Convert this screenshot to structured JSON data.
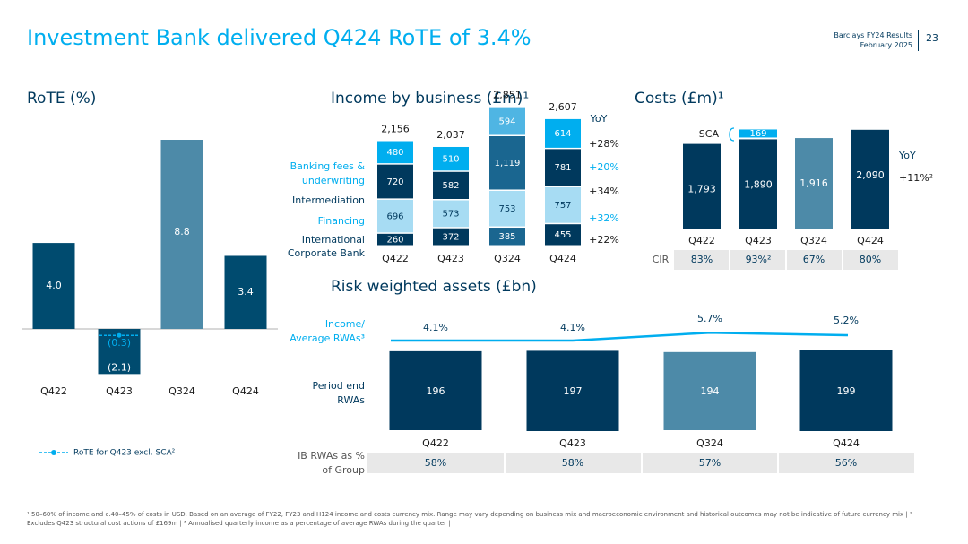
{
  "header": {
    "title": "Investment Bank delivered Q424 RoTE of 3.4%",
    "doc_line1": "Barclays FY24 Results",
    "doc_line2": "February 2025",
    "page_number": "23"
  },
  "colors": {
    "accent": "#00aeef",
    "navy": "#00395d",
    "dark": "#004b6f",
    "medium": "#1a6690",
    "steel": "#4d8aa8",
    "pale": "#a7dcf3",
    "light": "#4fb5e3",
    "grey_cell": "#e8e8e8"
  },
  "footnotes": "¹ 50–60% of income and c.40–45% of costs in USD. Based on an average of FY22, FY23 and H124 income and costs currency mix. Range may vary depending on business mix and macroeconomic environment and historical outcomes may not be indicative of future currency mix | ² Excludes Q423 structural cost actions of £169m | ³ Annualised quarterly income as a percentage of average RWAs during the quarter |",
  "chart_data": [
    {
      "id": "rote",
      "type": "bar",
      "title": "RoTE (%)",
      "categories": [
        "Q422",
        "Q423",
        "Q324",
        "Q424"
      ],
      "values": [
        4.0,
        -2.1,
        8.8,
        3.4
      ],
      "value_labels": [
        "4.0",
        "(2.1)",
        "8.8",
        "3.4"
      ],
      "ylim": [
        -2.1,
        8.8
      ],
      "excl_sca": {
        "category": "Q423",
        "value": -0.3,
        "label": "(0.3)"
      },
      "legend": "RoTE for Q423 excl. SCA²"
    },
    {
      "id": "income",
      "type": "bar",
      "stacked": true,
      "title": "Income by business (£m)¹",
      "categories": [
        "Q422",
        "Q423",
        "Q324",
        "Q424"
      ],
      "totals": [
        "2,156",
        "2,037",
        "2,851",
        "2,607"
      ],
      "yoy_header": "YoY",
      "series": [
        {
          "name": "International Corporate Bank",
          "legend_lines": [
            "International",
            "Corporate Bank"
          ],
          "values": [
            260,
            372,
            385,
            455
          ],
          "labels": [
            "260",
            "372",
            "385",
            "455"
          ],
          "yoy": "+22%"
        },
        {
          "name": "Financing",
          "legend_lines": [
            "Financing"
          ],
          "values": [
            696,
            573,
            753,
            757
          ],
          "labels": [
            "696",
            "573",
            "753",
            "757"
          ],
          "yoy": "+32%"
        },
        {
          "name": "Intermediation",
          "legend_lines": [
            "Intermediation"
          ],
          "values": [
            720,
            582,
            1119,
            781
          ],
          "labels": [
            "720",
            "582",
            "1,119",
            "781"
          ],
          "yoy": "+34%"
        },
        {
          "name": "Banking fees & underwriting",
          "legend_lines": [
            "Banking fees &",
            "underwriting"
          ],
          "values": [
            480,
            510,
            594,
            614
          ],
          "labels": [
            "480",
            "510",
            "594",
            "614"
          ],
          "yoy": "+20%"
        }
      ],
      "total_yoy": "+28%"
    },
    {
      "id": "costs",
      "type": "bar",
      "title": "Costs (£m)¹",
      "categories": [
        "Q422",
        "Q423",
        "Q324",
        "Q424"
      ],
      "values": [
        1793,
        1890,
        1916,
        2090
      ],
      "value_labels": [
        "1,793",
        "1,890",
        "1,916",
        "2,090"
      ],
      "sca": {
        "label": "SCA",
        "category": "Q423",
        "value": 169,
        "value_label": "169"
      },
      "yoy_header": "YoY",
      "yoy": "+11%²",
      "cir_label": "CIR",
      "cir": [
        "83%",
        "93%²",
        "67%",
        "80%"
      ]
    },
    {
      "id": "rwa",
      "type": "bar",
      "title": "Risk weighted assets (£bn)",
      "categories": [
        "Q422",
        "Q423",
        "Q324",
        "Q424"
      ],
      "values": [
        196,
        197,
        194,
        199
      ],
      "value_labels": [
        "196",
        "197",
        "194",
        "199"
      ],
      "row_label_lines": [
        "Period end",
        "RWAs"
      ],
      "line_series": {
        "label_lines": [
          "Income/",
          "Average RWAs³"
        ],
        "values": [
          4.1,
          4.1,
          5.7,
          5.2
        ],
        "labels": [
          "4.1%",
          "4.1%",
          "5.7%",
          "5.2%"
        ]
      },
      "group_share_label_lines": [
        "IB RWAs as %",
        "of Group"
      ],
      "group_share": [
        "58%",
        "58%",
        "57%",
        "56%"
      ]
    }
  ]
}
